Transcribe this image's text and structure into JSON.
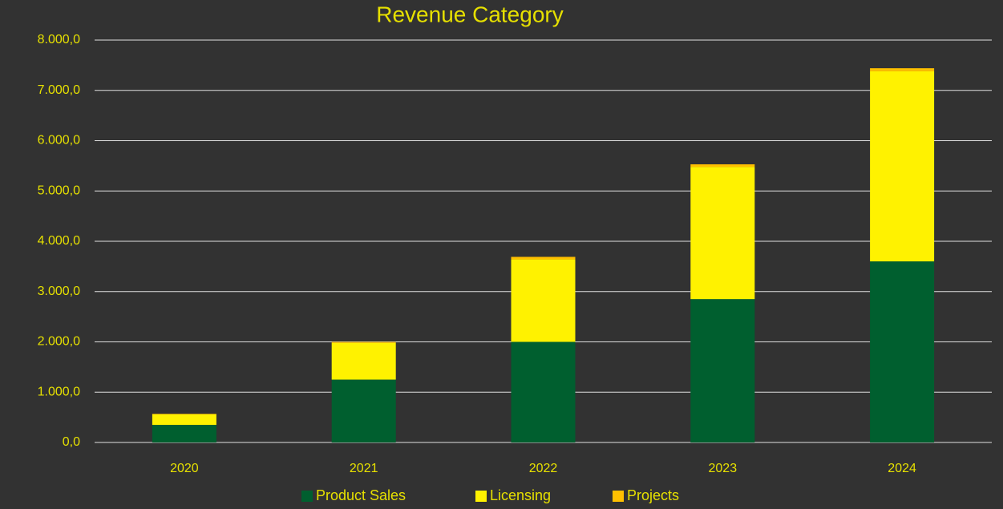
{
  "chart_data": {
    "type": "stacked_bar",
    "title": "Revenue Category",
    "categories": [
      "2020",
      "2021",
      "2022",
      "2023",
      "2024"
    ],
    "series": [
      {
        "name": "Product Sales",
        "color": "#005f2f",
        "values": [
          350,
          1250,
          2000,
          2850,
          3600
        ]
      },
      {
        "name": "Licensing",
        "color": "#fff200",
        "values": [
          210,
          730,
          1640,
          2630,
          3780
        ]
      },
      {
        "name": "Projects",
        "color": "#ffc000",
        "values": [
          10,
          20,
          50,
          50,
          60
        ]
      }
    ],
    "ylim": [
      0,
      8000
    ],
    "yticks": [
      {
        "value": 0,
        "label": "0,0"
      },
      {
        "value": 1000,
        "label": "1.000,0"
      },
      {
        "value": 2000,
        "label": "2.000,0"
      },
      {
        "value": 3000,
        "label": "3.000,0"
      },
      {
        "value": 4000,
        "label": "4.000,0"
      },
      {
        "value": 5000,
        "label": "5.000,0"
      },
      {
        "value": 6000,
        "label": "6.000,0"
      },
      {
        "value": 7000,
        "label": "7.000,0"
      },
      {
        "value": 8000,
        "label": "8.000,0"
      }
    ],
    "grid": true,
    "legend": "bottom"
  }
}
